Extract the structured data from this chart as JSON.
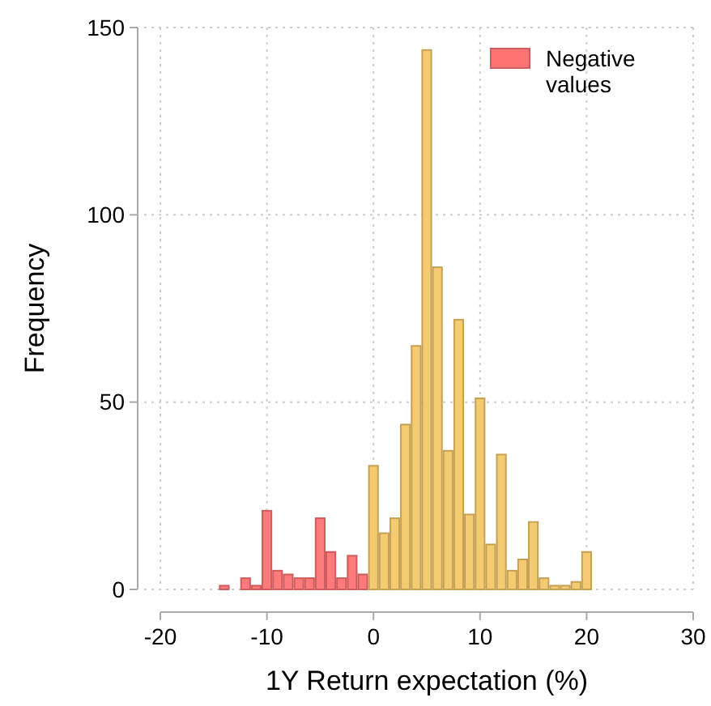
{
  "chart_data": {
    "type": "histogram",
    "xlabel": "1Y Return expectation (%)",
    "ylabel": "Frequency",
    "bins": [
      -14.5,
      -13.5,
      -12.5,
      -11.5,
      -10.5,
      -9.5,
      -8.5,
      -7.5,
      -6.5,
      -5.5,
      -4.5,
      -3.5,
      -2.5,
      -1.5,
      -0.5,
      0.5,
      1.5,
      2.5,
      3.5,
      4.5,
      5.5,
      6.5,
      7.5,
      8.5,
      9.5,
      10.5,
      11.5,
      12.5,
      13.5,
      14.5,
      15.5,
      16.5,
      17.5,
      18.5,
      19.5,
      20.5
    ],
    "series": [
      {
        "name": "Negative values",
        "color": "#ff7373",
        "values": [
          1,
          0,
          3,
          1,
          21,
          5,
          4,
          3,
          3,
          19,
          10,
          3,
          9,
          4,
          null,
          null,
          null,
          null,
          null,
          null,
          null,
          null,
          null,
          null,
          null,
          null,
          null,
          null,
          null,
          null,
          null,
          null,
          null,
          null,
          null
        ]
      },
      {
        "color": "#f4c86a",
        "values": [
          null,
          null,
          null,
          null,
          null,
          null,
          null,
          null,
          null,
          null,
          null,
          null,
          null,
          null,
          33,
          15,
          19,
          44,
          65,
          144,
          86,
          37,
          72,
          20,
          51,
          12,
          36,
          5,
          8,
          18,
          3,
          1,
          1,
          2,
          10
        ]
      }
    ],
    "xlim": [
      -20,
      30
    ],
    "xticks": [
      -20,
      -10,
      0,
      10,
      20,
      30
    ],
    "ylim": [
      0,
      150
    ],
    "yticks": [
      0,
      50,
      100,
      150
    ],
    "grid": true,
    "legend": "top right"
  }
}
